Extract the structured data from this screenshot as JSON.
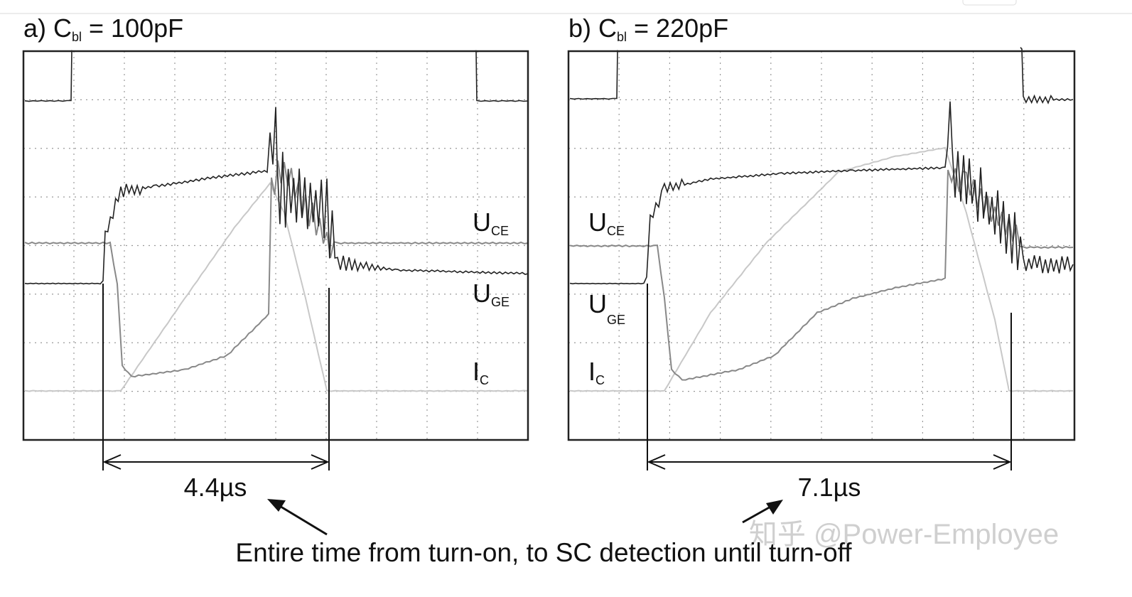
{
  "panels": [
    {
      "title": {
        "prefix": "a) C",
        "subscript": "bl",
        "suffix": " = 100pF"
      },
      "labels": [
        {
          "main": "U",
          "sub": "CE"
        },
        {
          "main": "U",
          "sub": "GE"
        },
        {
          "main": "I",
          "sub": "C"
        }
      ],
      "duration": "4.4µs"
    },
    {
      "title": {
        "prefix": "b) C",
        "subscript": "bl",
        "suffix": " = 220pF"
      },
      "labels": [
        {
          "main": "U",
          "sub": "CE"
        },
        {
          "main": "U",
          "sub": "GE"
        },
        {
          "main": "I",
          "sub": "C"
        }
      ],
      "duration": "7.1µs"
    }
  ],
  "caption": "Entire time from turn-on, to SC detection until turn-off",
  "watermark": "知乎 @Power-Employee"
}
